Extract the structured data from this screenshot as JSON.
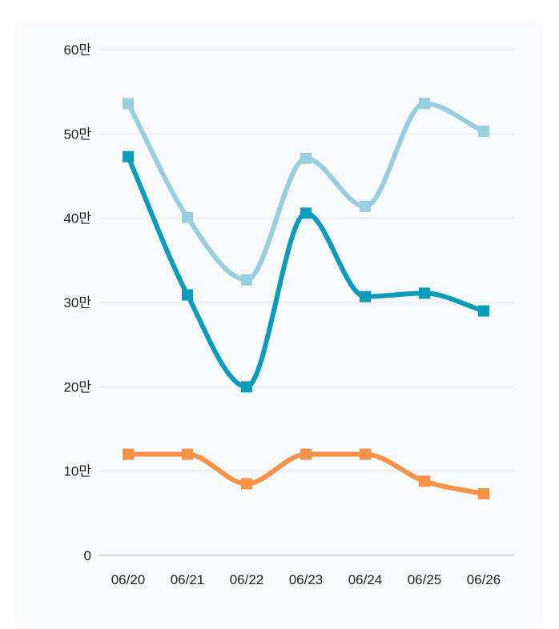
{
  "chart_data": {
    "type": "line",
    "title": "",
    "xlabel": "",
    "ylabel": "",
    "categories": [
      "06/20",
      "06/21",
      "06/22",
      "06/23",
      "06/24",
      "06/25",
      "06/26"
    ],
    "ylim": [
      0,
      600000
    ],
    "yticks": [
      {
        "value": 0,
        "label": "0"
      },
      {
        "value": 100000,
        "label": "10만"
      },
      {
        "value": 200000,
        "label": "20만"
      },
      {
        "value": 300000,
        "label": "30만"
      },
      {
        "value": 400000,
        "label": "40만"
      },
      {
        "value": 500000,
        "label": "50만"
      },
      {
        "value": 600000,
        "label": "60만"
      }
    ],
    "grid": true,
    "series": [
      {
        "name": "series-light-blue",
        "color": "#98cfe0",
        "values": [
          536000,
          401000,
          327000,
          471000,
          414000,
          536000,
          503000
        ]
      },
      {
        "name": "series-teal",
        "color": "#0a9cba",
        "values": [
          473000,
          309000,
          200000,
          406000,
          307000,
          311000,
          290000
        ]
      },
      {
        "name": "series-orange",
        "color": "#fc9148",
        "values": [
          120000,
          120000,
          85000,
          120000,
          120000,
          88000,
          73000
        ]
      }
    ]
  }
}
